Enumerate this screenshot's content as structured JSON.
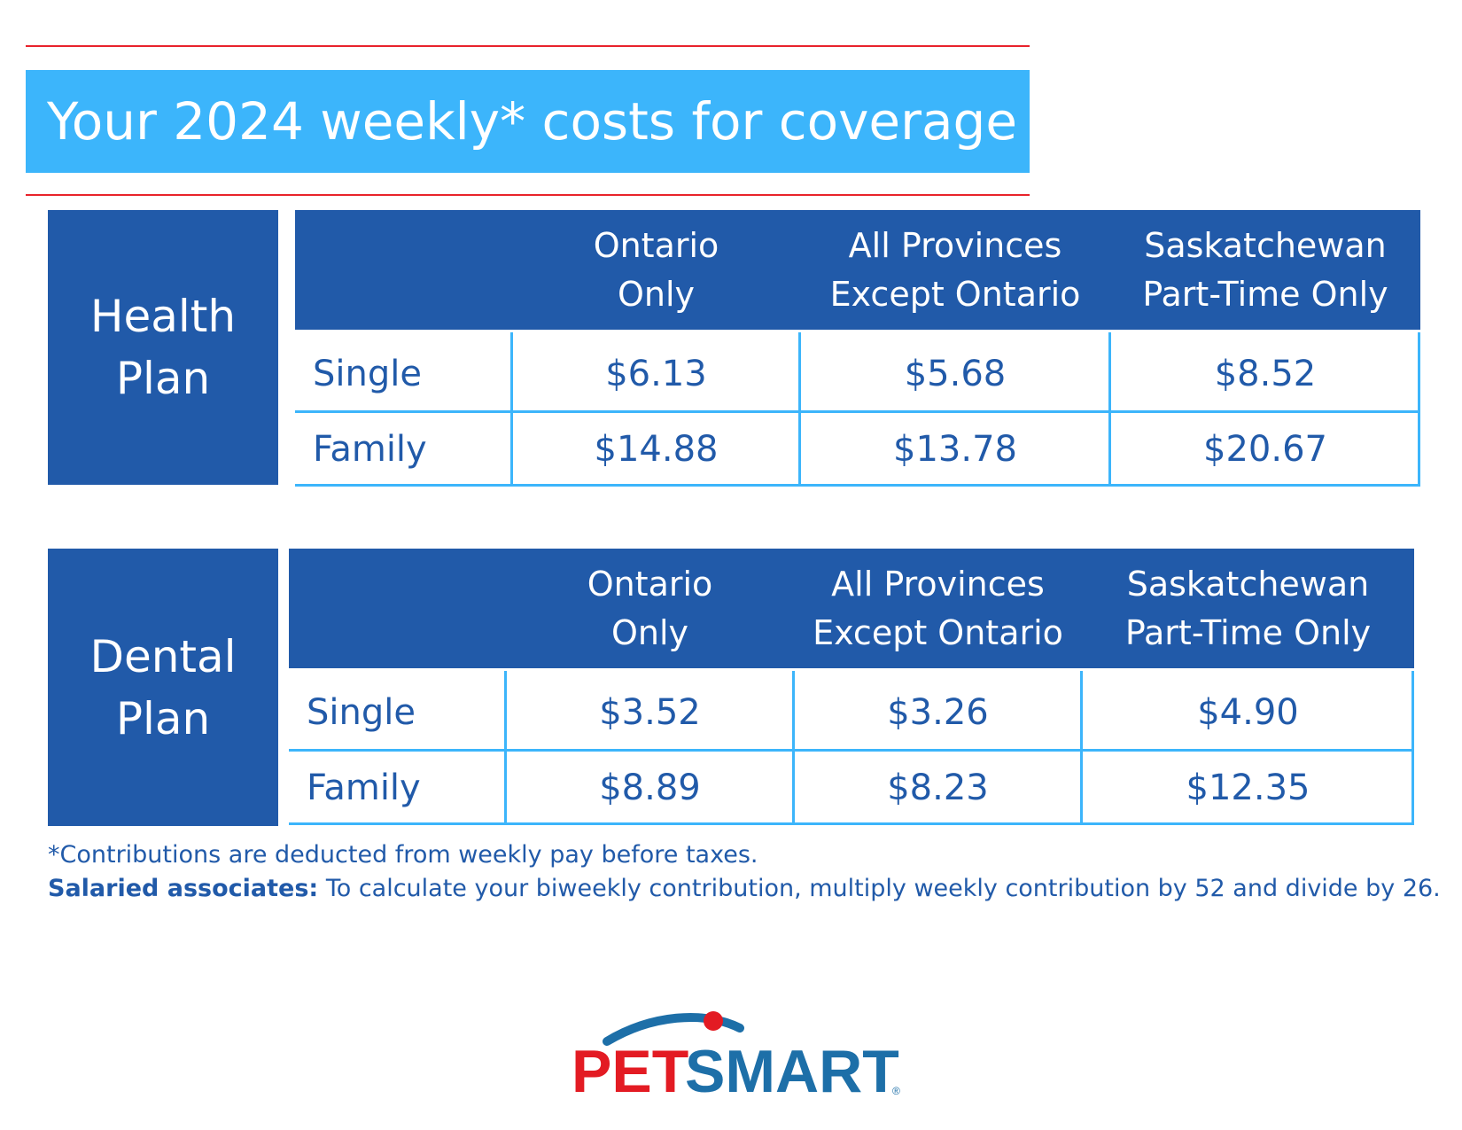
{
  "title": "Your 2024 weekly* costs for coverage",
  "columns": [
    "",
    "Ontario|Only",
    "All Provinces|Except Ontario",
    "Saskatchewan|Part-Time Only"
  ],
  "column_lines": [
    {
      "l1": "Ontario",
      "l2": "Only"
    },
    {
      "l1": "All Provinces",
      "l2": "Except Ontario"
    },
    {
      "l1": "Saskatchewan",
      "l2": "Part-Time Only"
    }
  ],
  "health": {
    "label_line1": "Health",
    "label_line2": "Plan",
    "rows": [
      {
        "label": "Single",
        "values": [
          "$6.13",
          "$5.68",
          "$8.52"
        ]
      },
      {
        "label": "Family",
        "values": [
          "$14.88",
          "$13.78",
          "$20.67"
        ]
      }
    ]
  },
  "dental": {
    "label_line1": "Dental",
    "label_line2": "Plan",
    "rows": [
      {
        "label": "Single",
        "values": [
          "$3.52",
          "$3.26",
          "$4.90"
        ]
      },
      {
        "label": "Family",
        "values": [
          "$8.89",
          "$8.23",
          "$12.35"
        ]
      }
    ]
  },
  "footnotes": {
    "line1": "*Contributions are deducted from weekly pay before taxes.",
    "line2_bold": "Salaried associates:",
    "line2_rest": " To calculate your biweekly contribution, multiply weekly contribution by 52 and divide by 26."
  },
  "logo": {
    "text_pet": "PET",
    "text_smart": "SMART",
    "registered": "®",
    "colors": {
      "red": "#e31b23",
      "blue": "#1d6fa8"
    }
  },
  "colors": {
    "title_bg": "#3cb5fb",
    "header_bg": "#215aa9",
    "rule": "#e8232b",
    "grid_line": "#3cb5fb"
  }
}
